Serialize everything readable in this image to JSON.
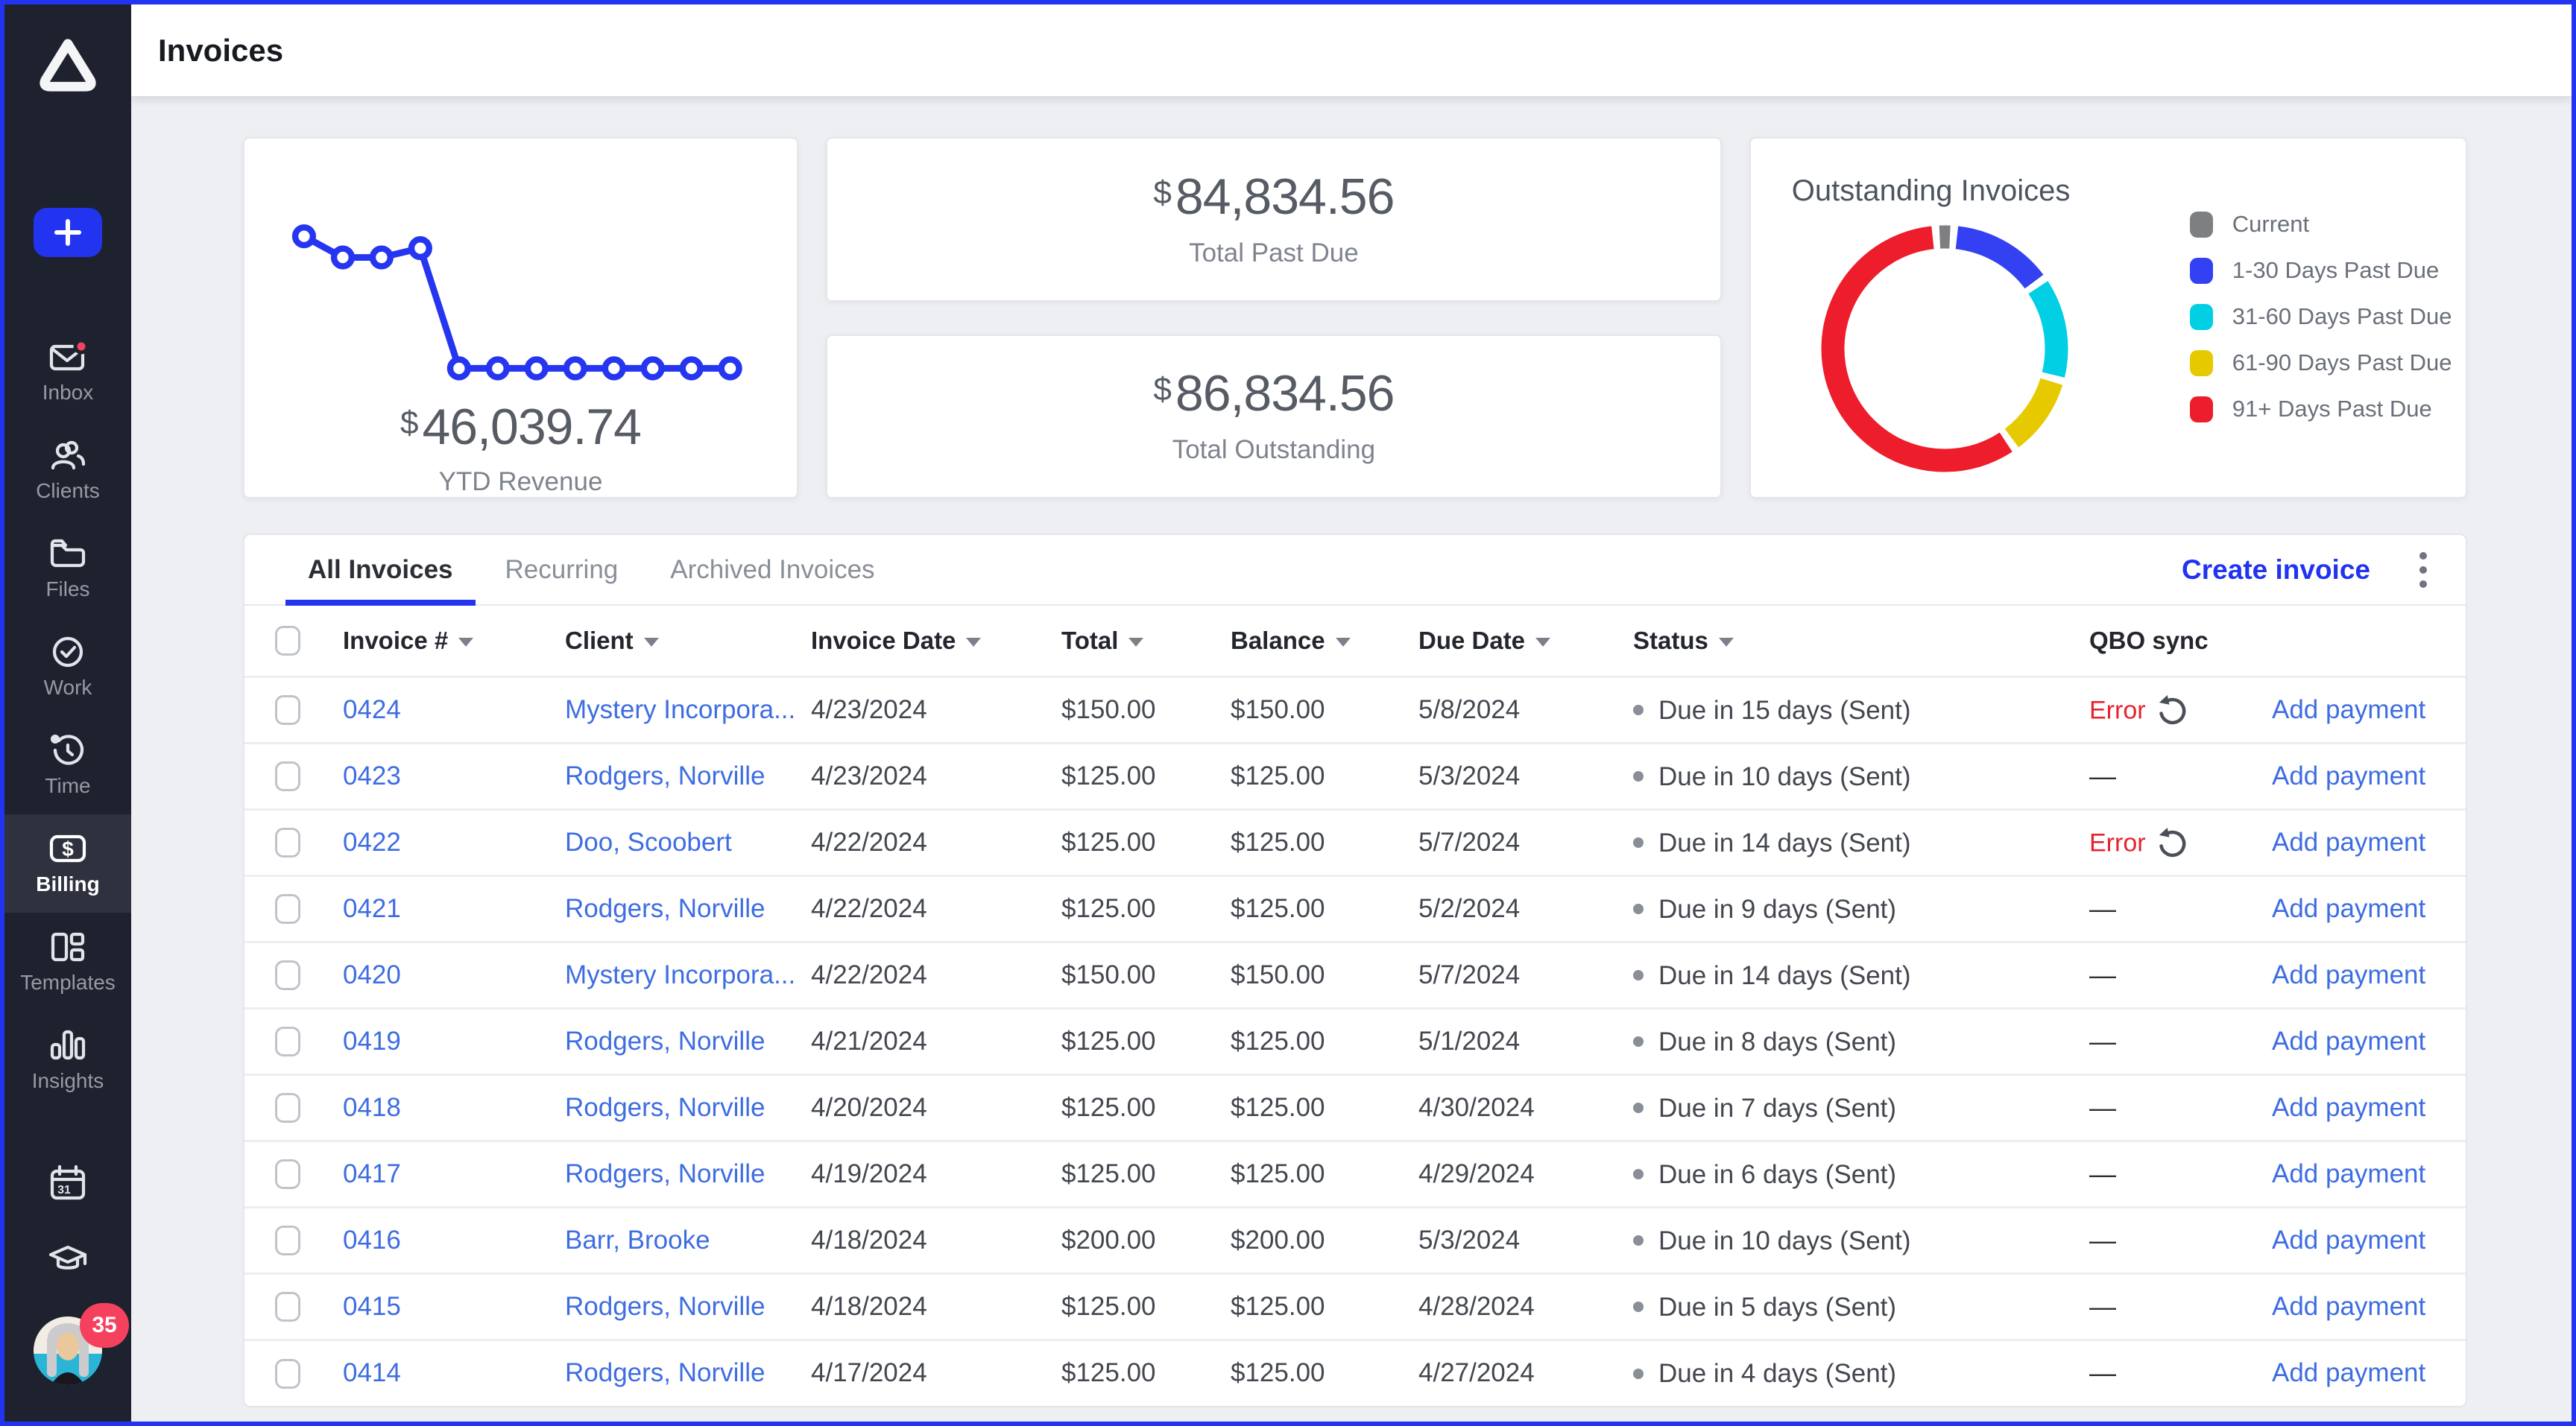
{
  "colors": {
    "accent": "#2334f0",
    "table_link": "#3e6de2",
    "error_red": "#e8212e",
    "badge_pink": "#f5415e",
    "sidebar_bg": "#1e222f",
    "sidebar_active_bg": "#2e323f",
    "page_bg": "#edeff3"
  },
  "header": {
    "title": "Invoices"
  },
  "sidebar": {
    "items": [
      {
        "label": "Inbox",
        "icon": "inbox-icon",
        "has_notification_dot": true
      },
      {
        "label": "Clients",
        "icon": "clients-icon"
      },
      {
        "label": "Files",
        "icon": "files-icon"
      },
      {
        "label": "Work",
        "icon": "work-icon"
      },
      {
        "label": "Time",
        "icon": "time-icon"
      },
      {
        "label": "Billing",
        "icon": "billing-icon",
        "active": true
      },
      {
        "label": "Templates",
        "icon": "templates-icon"
      },
      {
        "label": "Insights",
        "icon": "insights-icon"
      }
    ],
    "avatar_badge_count": "35"
  },
  "summary_cards": {
    "ytd": {
      "currency": "$",
      "value": "46,039.74",
      "label": "YTD Revenue"
    },
    "past_due": {
      "currency": "$",
      "value": "84,834.56",
      "label": "Total Past Due"
    },
    "outstanding": {
      "currency": "$",
      "value": "86,834.56",
      "label": "Total Outstanding"
    }
  },
  "chart_data": [
    {
      "type": "line",
      "title": "YTD Revenue trend (sparkline, no axes shown)",
      "x": [
        1,
        2,
        3,
        4,
        5,
        6,
        7,
        8,
        9,
        10,
        11,
        12
      ],
      "values_relative": [
        1.0,
        0.84,
        0.84,
        0.91,
        0,
        0,
        0,
        0,
        0,
        0,
        0,
        0
      ],
      "line_color": "#2636f0",
      "marker": "open-circle",
      "grid": false,
      "axes": "none"
    },
    {
      "type": "pie",
      "subtype": "donut",
      "title": "Outstanding Invoices",
      "labels": [
        "Current",
        "1-30 Days Past Due",
        "31-60 Days Past Due",
        "61-90 Days Past Due",
        "91+ Days Past Due"
      ],
      "values_percent": [
        2.5,
        14,
        14,
        11,
        58.5
      ],
      "colors": [
        "#7d7f82",
        "#3441f2",
        "#00cfe4",
        "#e7c900",
        "#ee1d2c"
      ],
      "legend_position": "right",
      "start": "small gray segment centered at 12 o'clock, clockwise"
    }
  ],
  "invoices_panel": {
    "tabs": [
      {
        "label": "All Invoices",
        "active": true
      },
      {
        "label": "Recurring",
        "active": false
      },
      {
        "label": "Archived Invoices",
        "active": false
      }
    ],
    "create_invoice_label": "Create invoice",
    "add_payment_label": "Add payment",
    "qbo_error_label": "Error",
    "qbo_none_label": "—",
    "columns": [
      {
        "label": "Invoice #",
        "sortable": true
      },
      {
        "label": "Client",
        "sortable": true
      },
      {
        "label": "Invoice Date",
        "sortable": true
      },
      {
        "label": "Total",
        "sortable": true
      },
      {
        "label": "Balance",
        "sortable": true
      },
      {
        "label": "Due Date",
        "sortable": true
      },
      {
        "label": "Status",
        "sortable": true
      },
      {
        "label": "QBO sync",
        "sortable": false
      }
    ],
    "rows": [
      {
        "invoice_no": "0424",
        "client": "Mystery Incorpora...",
        "invoice_date": "4/23/2024",
        "total": "$150.00",
        "balance": "$150.00",
        "due_date": "5/8/2024",
        "status": "Due in 15 days (Sent)",
        "qbo_sync": "error"
      },
      {
        "invoice_no": "0423",
        "client": "Rodgers, Norville",
        "invoice_date": "4/23/2024",
        "total": "$125.00",
        "balance": "$125.00",
        "due_date": "5/3/2024",
        "status": "Due in 10 days (Sent)",
        "qbo_sync": "none"
      },
      {
        "invoice_no": "0422",
        "client": "Doo, Scoobert",
        "invoice_date": "4/22/2024",
        "total": "$125.00",
        "balance": "$125.00",
        "due_date": "5/7/2024",
        "status": "Due in 14 days (Sent)",
        "qbo_sync": "error"
      },
      {
        "invoice_no": "0421",
        "client": "Rodgers, Norville",
        "invoice_date": "4/22/2024",
        "total": "$125.00",
        "balance": "$125.00",
        "due_date": "5/2/2024",
        "status": "Due in 9 days (Sent)",
        "qbo_sync": "none"
      },
      {
        "invoice_no": "0420",
        "client": "Mystery Incorpora...",
        "invoice_date": "4/22/2024",
        "total": "$150.00",
        "balance": "$150.00",
        "due_date": "5/7/2024",
        "status": "Due in 14 days (Sent)",
        "qbo_sync": "none"
      },
      {
        "invoice_no": "0419",
        "client": "Rodgers, Norville",
        "invoice_date": "4/21/2024",
        "total": "$125.00",
        "balance": "$125.00",
        "due_date": "5/1/2024",
        "status": "Due in 8 days (Sent)",
        "qbo_sync": "none"
      },
      {
        "invoice_no": "0418",
        "client": "Rodgers, Norville",
        "invoice_date": "4/20/2024",
        "total": "$125.00",
        "balance": "$125.00",
        "due_date": "4/30/2024",
        "status": "Due in 7 days (Sent)",
        "qbo_sync": "none"
      },
      {
        "invoice_no": "0417",
        "client": "Rodgers, Norville",
        "invoice_date": "4/19/2024",
        "total": "$125.00",
        "balance": "$125.00",
        "due_date": "4/29/2024",
        "status": "Due in 6 days (Sent)",
        "qbo_sync": "none"
      },
      {
        "invoice_no": "0416",
        "client": "Barr, Brooke",
        "invoice_date": "4/18/2024",
        "total": "$200.00",
        "balance": "$200.00",
        "due_date": "5/3/2024",
        "status": "Due in 10 days (Sent)",
        "qbo_sync": "none"
      },
      {
        "invoice_no": "0415",
        "client": "Rodgers, Norville",
        "invoice_date": "4/18/2024",
        "total": "$125.00",
        "balance": "$125.00",
        "due_date": "4/28/2024",
        "status": "Due in 5 days (Sent)",
        "qbo_sync": "none"
      },
      {
        "invoice_no": "0414",
        "client": "Rodgers, Norville",
        "invoice_date": "4/17/2024",
        "total": "$125.00",
        "balance": "$125.00",
        "due_date": "4/27/2024",
        "status": "Due in 4 days (Sent)",
        "qbo_sync": "none"
      }
    ]
  }
}
